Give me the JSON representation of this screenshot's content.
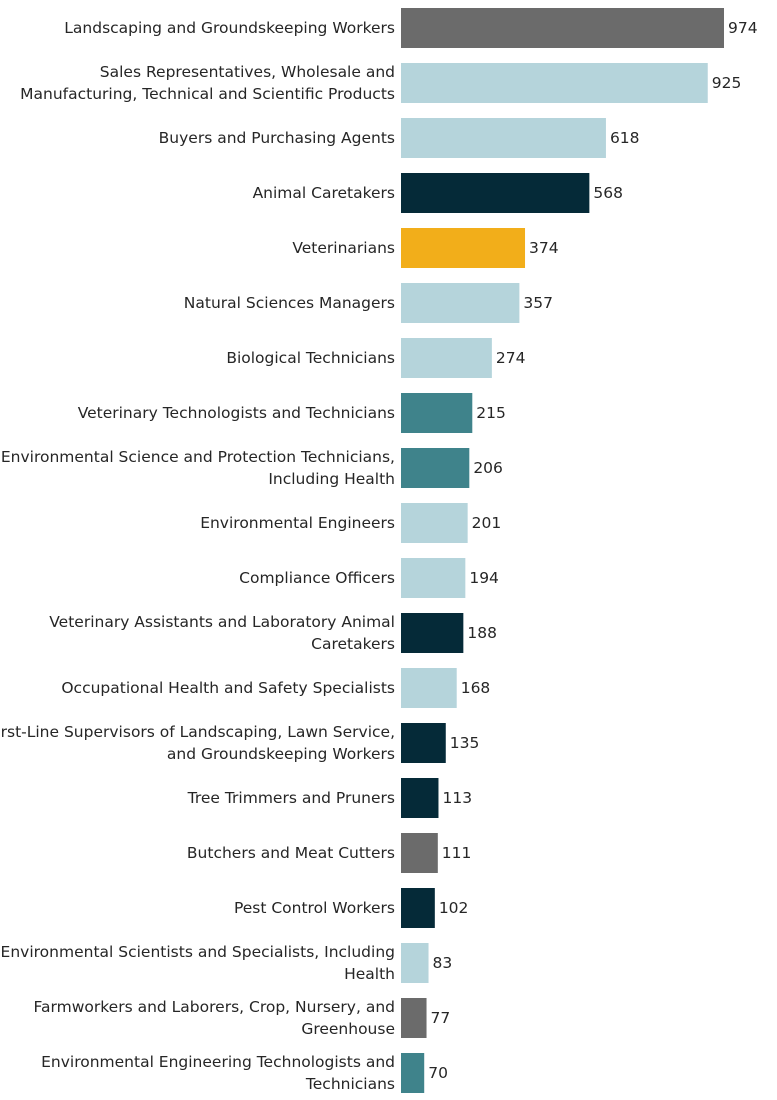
{
  "chart_data": {
    "type": "bar",
    "orientation": "horizontal",
    "title": "",
    "xlabel": "",
    "ylabel": "",
    "xlim": [
      0,
      974
    ],
    "grid": false,
    "legend": "none",
    "categories": [
      [
        "Landscaping and Groundskeeping Workers"
      ],
      [
        "Sales Representatives, Wholesale and",
        "Manufacturing, Technical and Scientific Products"
      ],
      [
        "Buyers and Purchasing Agents"
      ],
      [
        "Animal Caretakers"
      ],
      [
        "Veterinarians"
      ],
      [
        "Natural Sciences Managers"
      ],
      [
        "Biological Technicians"
      ],
      [
        "Veterinary Technologists and Technicians"
      ],
      [
        "Environmental Science and Protection Technicians,",
        "Including Health"
      ],
      [
        "Environmental Engineers"
      ],
      [
        "Compliance Officers"
      ],
      [
        "Veterinary Assistants and Laboratory Animal",
        "Caretakers"
      ],
      [
        "Occupational Health and Safety Specialists"
      ],
      [
        "First-Line Supervisors of Landscaping, Lawn Service,",
        "and Groundskeeping Workers"
      ],
      [
        "Tree Trimmers and Pruners"
      ],
      [
        "Butchers and Meat Cutters"
      ],
      [
        "Pest Control Workers"
      ],
      [
        "Environmental Scientists and Specialists, Including",
        "Health"
      ],
      [
        "Farmworkers and Laborers, Crop, Nursery, and",
        "Greenhouse"
      ],
      [
        "Environmental Engineering Technologists and",
        "Technicians"
      ]
    ],
    "values": [
      974,
      925,
      618,
      568,
      374,
      357,
      274,
      215,
      206,
      201,
      194,
      188,
      168,
      135,
      113,
      111,
      102,
      83,
      77,
      70
    ],
    "value_labels": [
      "974",
      "925",
      "618",
      "568",
      "374",
      "357",
      "274",
      "215",
      "206",
      "201",
      "194",
      "188",
      "168",
      "135",
      "113",
      "111",
      "102",
      "83",
      "77",
      "70"
    ],
    "colors": [
      "#6b6b6b",
      "#b5d4db",
      "#b5d4db",
      "#052a38",
      "#f2ae1a",
      "#b5d4db",
      "#b5d4db",
      "#3f838b",
      "#3f838b",
      "#b5d4db",
      "#b5d4db",
      "#052a38",
      "#b5d4db",
      "#052a38",
      "#052a38",
      "#6b6b6b",
      "#052a38",
      "#b5d4db",
      "#6b6b6b",
      "#3f838b"
    ]
  }
}
